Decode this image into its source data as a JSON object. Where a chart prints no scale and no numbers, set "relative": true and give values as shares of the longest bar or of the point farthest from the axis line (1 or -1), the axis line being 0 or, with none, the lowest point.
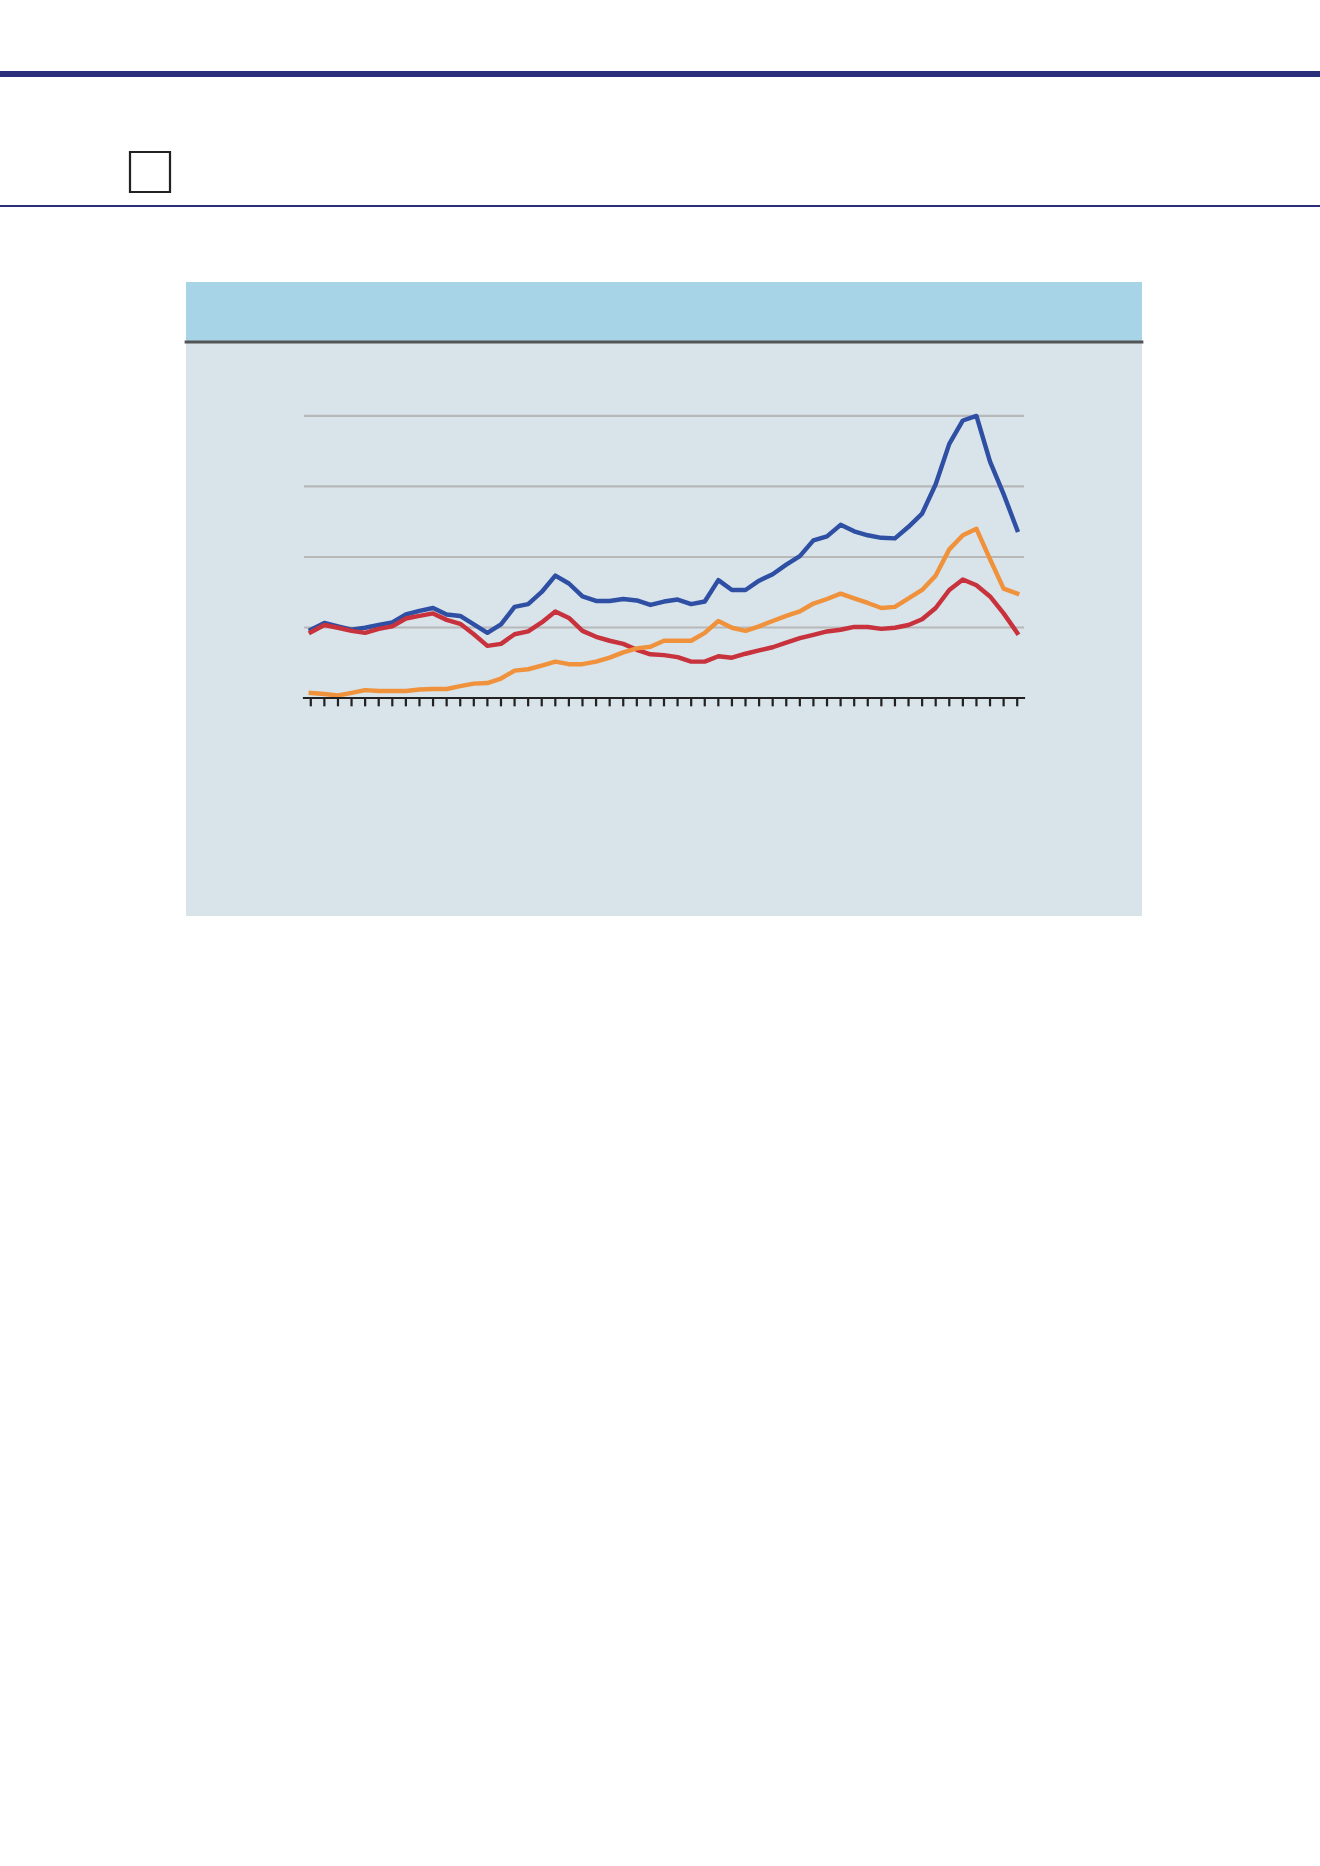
{
  "chart_data": {
    "type": "line",
    "relative": true,
    "grid": "y",
    "marker": "none",
    "line_style": "solid",
    "categories": [
      null,
      null,
      null,
      null,
      null,
      null,
      null,
      null,
      null,
      null,
      null,
      null,
      null,
      null,
      null,
      null,
      null,
      null,
      null,
      null,
      null,
      null,
      null,
      null,
      null,
      null,
      null,
      null,
      null,
      null,
      null,
      null,
      null,
      null,
      null,
      null,
      null,
      null,
      null,
      null,
      null,
      null,
      null,
      null,
      null,
      null,
      null,
      null,
      null,
      null,
      null,
      null,
      null
    ],
    "series": [
      {
        "color": "#2e4fa3",
        "values": [
          0.242,
          0.266,
          0.254,
          0.242,
          0.249,
          0.259,
          0.268,
          0.296,
          0.309,
          0.319,
          0.296,
          0.291,
          0.261,
          0.231,
          0.261,
          0.323,
          0.333,
          0.376,
          0.434,
          0.406,
          0.36,
          0.344,
          0.344,
          0.351,
          0.346,
          0.33,
          0.342,
          0.349,
          0.333,
          0.342,
          0.418,
          0.383,
          0.383,
          0.416,
          0.439,
          0.473,
          0.503,
          0.559,
          0.573,
          0.614,
          0.591,
          0.577,
          0.568,
          0.566,
          0.607,
          0.654,
          0.758,
          0.901,
          0.984,
          1.0,
          0.838,
          0.723,
          0.596
        ]
      },
      {
        "color": "#c8323c",
        "values": [
          0.233,
          0.259,
          0.249,
          0.238,
          0.231,
          0.245,
          0.254,
          0.282,
          0.291,
          0.3,
          0.277,
          0.263,
          0.226,
          0.185,
          0.192,
          0.226,
          0.236,
          0.268,
          0.307,
          0.284,
          0.238,
          0.217,
          0.203,
          0.192,
          0.171,
          0.155,
          0.152,
          0.145,
          0.129,
          0.129,
          0.148,
          0.143,
          0.157,
          0.169,
          0.18,
          0.196,
          0.212,
          0.224,
          0.236,
          0.242,
          0.252,
          0.252,
          0.245,
          0.249,
          0.259,
          0.279,
          0.319,
          0.383,
          0.42,
          0.4,
          0.36,
          0.3,
          0.231
        ]
      },
      {
        "color": "#f0923c",
        "values": [
          0.018,
          0.014,
          0.009,
          0.018,
          0.028,
          0.025,
          0.025,
          0.025,
          0.03,
          0.032,
          0.032,
          0.042,
          0.051,
          0.053,
          0.069,
          0.097,
          0.102,
          0.115,
          0.129,
          0.12,
          0.12,
          0.129,
          0.143,
          0.162,
          0.176,
          0.182,
          0.203,
          0.203,
          0.203,
          0.231,
          0.273,
          0.249,
          0.238,
          0.254,
          0.273,
          0.291,
          0.307,
          0.335,
          0.351,
          0.37,
          0.353,
          0.337,
          0.319,
          0.323,
          0.353,
          0.383,
          0.434,
          0.527,
          0.577,
          0.6,
          0.492,
          0.388,
          0.37
        ]
      }
    ]
  }
}
